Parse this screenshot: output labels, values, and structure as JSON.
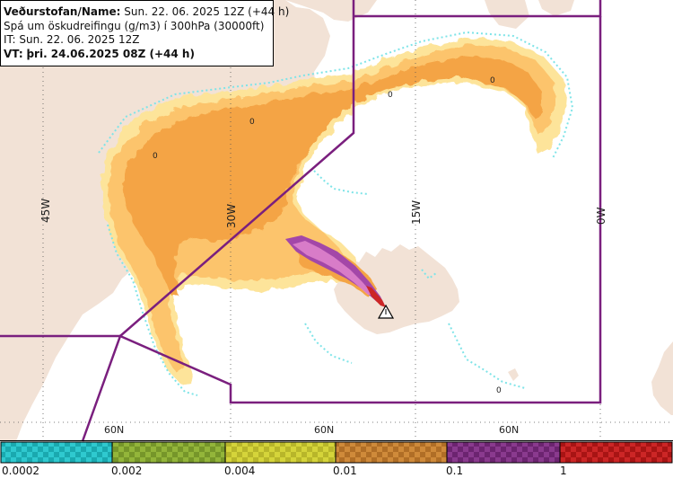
{
  "header": {
    "line1_label": "Veðurstofan/Name:",
    "line1_value": "Sun. 22. 06. 2025 12Z (+44 h)",
    "line2": "Spá um öskudreifingu (g/m3) í 300hPa (30000ft)",
    "line3": "IT: Sun. 22. 06. 2025 12Z",
    "line4_label": "VT:",
    "line4_value": "þri. 24.06.2025 08Z (+44 h)"
  },
  "map": {
    "longitude_labels": [
      "45W",
      "30W",
      "15W",
      "0W"
    ],
    "latitude_labels": [
      "60N",
      "60N",
      "60N"
    ],
    "contour_labels": [
      "0",
      "0",
      "0",
      "0",
      "0"
    ],
    "colors": {
      "land": "#f2e2d6",
      "sea": "#ffffff",
      "ash_yellow": "#fde49a",
      "ash_light_orange": "#fcc46c",
      "ash_orange": "#f4a444",
      "ash_purple": "#a347a8",
      "cyan_speckle": "#7fe4e8",
      "boundary": "#7a1f7e"
    }
  },
  "legend": {
    "ticks": [
      "0.0002",
      "0.002",
      "0.004",
      "0.01",
      "0.1",
      "1"
    ],
    "colors": [
      "#2fc9cf",
      "#93b53a",
      "#d5d43a",
      "#cf8a3a",
      "#8a3a8e",
      "#cc2626"
    ]
  }
}
